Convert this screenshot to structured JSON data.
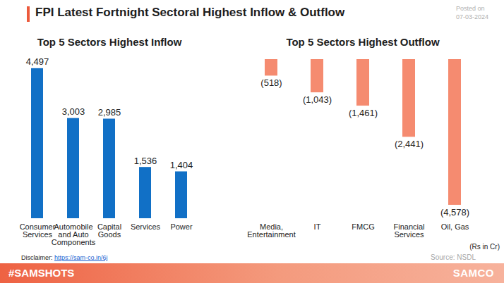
{
  "page": {
    "title": "FPI Latest Fortnight Sectoral Highest Inflow & Outflow",
    "posted_label": "Posted on",
    "posted_date": "07-03-2024",
    "disclaimer_label": "Disclaimer:",
    "disclaimer_url": "https://sam-co.in/6j",
    "source": "Source: NSDL",
    "unit_note": "(Rs in Cr)",
    "hashtag": "#SAMSHOTS",
    "brand": "SAMCO"
  },
  "chart_data": [
    {
      "type": "bar",
      "title": "Top 5 Sectors Highest Inflow",
      "categories": [
        "Consumer Services",
        "Automobile and Auto Components",
        "Capital Goods",
        "Services",
        "Power"
      ],
      "values": [
        4497,
        3003,
        2985,
        1536,
        1404
      ],
      "value_labels": [
        "4,497",
        "3,003",
        "2,985",
        "1,536",
        "1,404"
      ],
      "color": "#1170c6",
      "ylim": [
        0,
        4600
      ],
      "data_labels": true,
      "tick_labels": "x",
      "grid": false
    },
    {
      "type": "bar",
      "title": "Top 5 Sectors Highest Outflow",
      "categories": [
        "Media, Entertainment",
        "IT",
        "FMCG",
        "Financial Services",
        "Oil, Gas"
      ],
      "values": [
        -518,
        -1043,
        -1461,
        -2441,
        -4578
      ],
      "value_labels": [
        "(518)",
        "(1,043)",
        "(1,461)",
        "(2,441)",
        "(4,578)"
      ],
      "color": "#f58b70",
      "ylim": [
        -5000,
        0
      ],
      "data_labels": true,
      "tick_labels": "x",
      "grid": false
    }
  ]
}
